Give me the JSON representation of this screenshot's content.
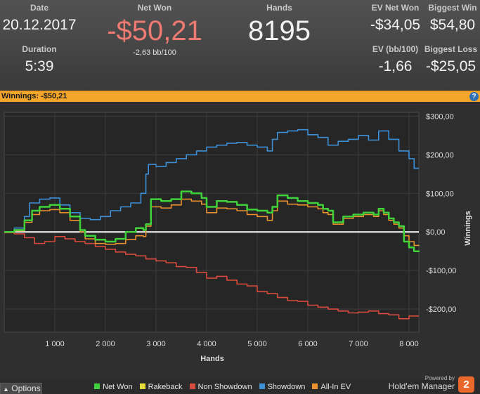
{
  "stats": {
    "date": {
      "label": "Date",
      "value": "20.12.2017"
    },
    "duration": {
      "label": "Duration",
      "value": "5:39"
    },
    "net_won": {
      "label": "Net Won",
      "value": "-$50,21",
      "sub": "-2,63 bb/100"
    },
    "hands": {
      "label": "Hands",
      "value": "8195"
    },
    "ev_net_won": {
      "label": "EV Net Won",
      "value": "-$34,05"
    },
    "ev_bb": {
      "label": "EV (bb/100)",
      "value": "-1,66"
    },
    "biggest_win": {
      "label": "Biggest Win",
      "value": "$54,80"
    },
    "biggest_loss": {
      "label": "Biggest Loss",
      "value": "-$25,05"
    }
  },
  "title_bar": {
    "text": "Winnings: -$50,21",
    "help": "?"
  },
  "footer": {
    "options_label": "Options",
    "powered_by": "Powered by",
    "brand": "Hold'em Manager",
    "brand_logo": "2"
  },
  "colors": {
    "accent": "#f4a62a",
    "net_won": "#3fd23a",
    "rakeback": "#e8dc3a",
    "non_showdown": "#d84a3e",
    "showdown": "#3d8fd6",
    "all_in_ev": "#e8912e",
    "negative": "#ee7a72"
  },
  "chart_data": {
    "type": "line",
    "xlabel": "Hands",
    "ylabel": "Winnings",
    "xlim": [
      0,
      8195
    ],
    "ylim": [
      -260,
      310
    ],
    "x_ticks": [
      1000,
      2000,
      3000,
      4000,
      5000,
      6000,
      7000,
      8000
    ],
    "x_tick_labels": [
      "1 000",
      "2 000",
      "3 000",
      "4 000",
      "5 000",
      "6 000",
      "7 000",
      "8 000"
    ],
    "y_ticks": [
      -200,
      -100,
      0,
      100,
      200,
      300
    ],
    "y_tick_labels": [
      "-$200,00",
      "-$100,00",
      "$0,00",
      "$100,00",
      "$200,00",
      "$300,00"
    ],
    "grid": true,
    "legend_position": "bottom",
    "series": [
      {
        "name": "Net Won",
        "color": "#3fd23a",
        "x": [
          0,
          200,
          400,
          550,
          700,
          900,
          1100,
          1300,
          1500,
          1600,
          1800,
          2000,
          2200,
          2400,
          2600,
          2750,
          2800,
          2900,
          3100,
          3300,
          3500,
          3700,
          3900,
          4000,
          4200,
          4400,
          4600,
          4800,
          5000,
          5200,
          5300,
          5400,
          5600,
          5800,
          6000,
          6200,
          6300,
          6400,
          6500,
          6700,
          6900,
          7100,
          7300,
          7400,
          7500,
          7600,
          7700,
          7800,
          7900,
          8000,
          8100,
          8195
        ],
        "y": [
          0,
          5,
          30,
          55,
          65,
          70,
          60,
          40,
          5,
          -10,
          -20,
          -25,
          -18,
          0,
          10,
          5,
          20,
          85,
          80,
          85,
          105,
          100,
          88,
          65,
          80,
          78,
          70,
          58,
          55,
          50,
          65,
          95,
          88,
          80,
          75,
          70,
          60,
          55,
          25,
          40,
          45,
          50,
          45,
          60,
          50,
          35,
          25,
          15,
          -25,
          -40,
          -50,
          -52
        ]
      },
      {
        "name": "Rakeback",
        "color": "#e8dc3a",
        "x": [
          0,
          8195
        ],
        "y": [
          0,
          0
        ]
      },
      {
        "name": "Non Showdown",
        "color": "#d84a3e",
        "x": [
          0,
          200,
          400,
          600,
          800,
          1000,
          1200,
          1400,
          1600,
          1800,
          2000,
          2200,
          2400,
          2600,
          2800,
          3000,
          3200,
          3400,
          3600,
          3800,
          4000,
          4200,
          4400,
          4600,
          4800,
          5000,
          5200,
          5400,
          5600,
          5800,
          6000,
          6200,
          6400,
          6600,
          6800,
          7000,
          7200,
          7400,
          7600,
          7800,
          8000,
          8195
        ],
        "y": [
          -2,
          -5,
          -15,
          -30,
          -25,
          -12,
          -18,
          -25,
          -30,
          -38,
          -45,
          -52,
          -58,
          -62,
          -70,
          -75,
          -80,
          -90,
          -92,
          -105,
          -120,
          -115,
          -125,
          -135,
          -140,
          -155,
          -160,
          -170,
          -178,
          -180,
          -190,
          -195,
          -200,
          -205,
          -210,
          -208,
          -205,
          -212,
          -215,
          -225,
          -218,
          -218
        ]
      },
      {
        "name": "Showdown",
        "color": "#3d8fd6",
        "x": [
          0,
          200,
          400,
          500,
          700,
          900,
          1100,
          1300,
          1500,
          1700,
          1900,
          2100,
          2300,
          2500,
          2700,
          2800,
          2850,
          3000,
          3200,
          3400,
          3600,
          3800,
          4000,
          4200,
          4400,
          4600,
          4800,
          5000,
          5200,
          5300,
          5400,
          5600,
          5800,
          6000,
          6200,
          6400,
          6600,
          6800,
          7000,
          7200,
          7400,
          7600,
          7800,
          8000,
          8100,
          8195
        ],
        "y": [
          0,
          10,
          40,
          75,
          85,
          88,
          70,
          50,
          35,
          32,
          40,
          55,
          65,
          75,
          100,
          150,
          175,
          170,
          180,
          190,
          200,
          210,
          220,
          225,
          230,
          232,
          225,
          220,
          210,
          240,
          258,
          262,
          265,
          252,
          245,
          225,
          235,
          240,
          250,
          238,
          262,
          240,
          210,
          190,
          165,
          165
        ]
      },
      {
        "name": "All-In EV",
        "color": "#e8912e",
        "x": [
          0,
          200,
          400,
          550,
          700,
          900,
          1100,
          1300,
          1500,
          1600,
          1800,
          2000,
          2200,
          2400,
          2600,
          2750,
          2800,
          2900,
          3100,
          3300,
          3500,
          3700,
          3900,
          4000,
          4200,
          4400,
          4600,
          4800,
          5000,
          5200,
          5300,
          5400,
          5600,
          5800,
          6000,
          6200,
          6300,
          6400,
          6500,
          6700,
          6900,
          7100,
          7300,
          7400,
          7500,
          7600,
          7700,
          7800,
          7900,
          8000,
          8100,
          8195
        ],
        "y": [
          0,
          3,
          25,
          45,
          55,
          58,
          50,
          30,
          0,
          -18,
          -30,
          -32,
          -30,
          -20,
          -10,
          -12,
          15,
          65,
          62,
          70,
          85,
          80,
          72,
          50,
          62,
          60,
          55,
          45,
          40,
          30,
          55,
          80,
          72,
          70,
          65,
          60,
          50,
          45,
          20,
          35,
          40,
          45,
          40,
          55,
          45,
          30,
          20,
          10,
          -10,
          -25,
          -35,
          -36
        ]
      }
    ]
  }
}
